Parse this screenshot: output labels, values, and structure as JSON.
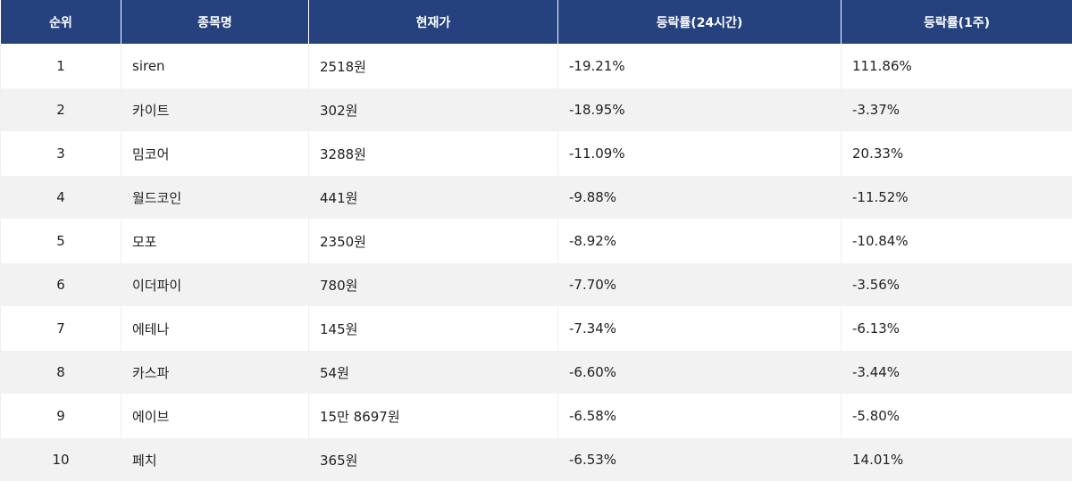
{
  "table": {
    "headers": [
      "순위",
      "종목명",
      "현재가",
      "등락률(24시간)",
      "등락률(1주)"
    ],
    "rows": [
      {
        "rank": "1",
        "name": "siren",
        "price": "2518원",
        "change_24h": "-19.21%",
        "change_1w": "111.86%"
      },
      {
        "rank": "2",
        "name": "카이트",
        "price": "302원",
        "change_24h": "-18.95%",
        "change_1w": "-3.37%"
      },
      {
        "rank": "3",
        "name": "밈코어",
        "price": "3288원",
        "change_24h": "-11.09%",
        "change_1w": "20.33%"
      },
      {
        "rank": "4",
        "name": "월드코인",
        "price": "441원",
        "change_24h": "-9.88%",
        "change_1w": "-11.52%"
      },
      {
        "rank": "5",
        "name": "모포",
        "price": "2350원",
        "change_24h": "-8.92%",
        "change_1w": "-10.84%"
      },
      {
        "rank": "6",
        "name": "이더파이",
        "price": "780원",
        "change_24h": "-7.70%",
        "change_1w": "-3.56%"
      },
      {
        "rank": "7",
        "name": "에테나",
        "price": "145원",
        "change_24h": "-7.34%",
        "change_1w": "-6.13%"
      },
      {
        "rank": "8",
        "name": "카스파",
        "price": "54원",
        "change_24h": "-6.60%",
        "change_1w": "-3.44%"
      },
      {
        "rank": "9",
        "name": "에이브",
        "price": "15만 8697원",
        "change_24h": "-6.58%",
        "change_1w": "-5.80%"
      },
      {
        "rank": "10",
        "name": "페치",
        "price": "365원",
        "change_24h": "-6.53%",
        "change_1w": "14.01%"
      }
    ]
  },
  "colors": {
    "header_bg": "#25427f",
    "header_text": "#ffffff",
    "row_alt_bg": "#f2f2f2",
    "text": "#222222"
  }
}
